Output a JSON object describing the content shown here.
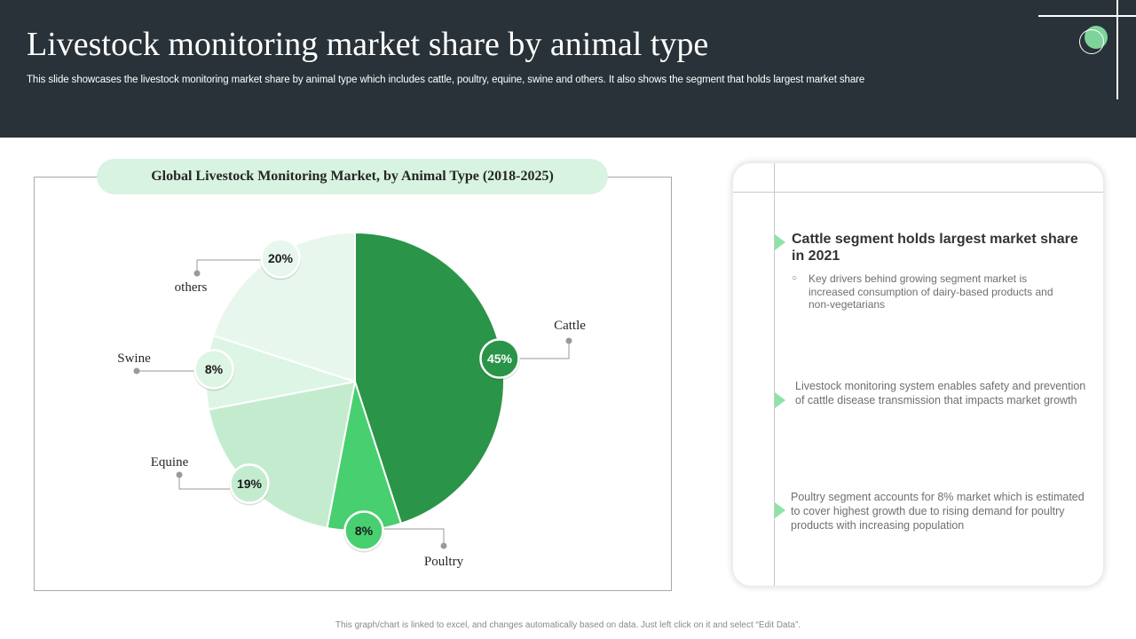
{
  "slide": {
    "title": "Livestock monitoring market share by animal type",
    "subtitle": "This slide showcases the livestock monitoring market share by animal type which includes cattle, poultry,  equine, swine and others. It also shows the segment that holds largest market share",
    "footnote": "This graph/chart is linked to excel, and changes automatically based on data. Just left click on it and select “Edit Data”."
  },
  "chart_data": {
    "type": "pie",
    "title": "Global Livestock Monitoring Market, by Animal Type (2018-2025)",
    "start": "12 o'clock, clockwise",
    "categories": [
      "Cattle",
      "Poultry",
      "Equine",
      "Swine",
      "others"
    ],
    "values": [
      45,
      8,
      19,
      8,
      20
    ],
    "labels": [
      "45%",
      "8%",
      "19%",
      "8%",
      "20%"
    ],
    "colors": [
      "#2a9448",
      "#48cf70",
      "#c3eccf",
      "#dcf5e4",
      "#e8f7ed"
    ],
    "badge_colors": [
      "#2a9448",
      "#48cf70",
      "#c3eccf",
      "#dcf5e4",
      "#e8f7ed"
    ],
    "badge_text_colors": [
      "#ffffff",
      "#1a1a1a",
      "#1a1a1a",
      "#1a1a1a",
      "#1a1a1a"
    ]
  },
  "panel": {
    "point1": {
      "heading": "Cattle segment holds largest market share in 2021",
      "bullet": "Key drivers behind growing segment market is increased consumption of dairy-based products and non-vegetarians"
    },
    "point2": "Livestock monitoring system enables safety and prevention of cattle disease transmission that impacts market growth",
    "point3": "Poultry segment accounts for 8% market which is estimated to cover highest growth due to rising demand for poultry products with increasing population",
    "marker_color": "#8fe3a8"
  },
  "icons": {
    "bullet": "○"
  }
}
